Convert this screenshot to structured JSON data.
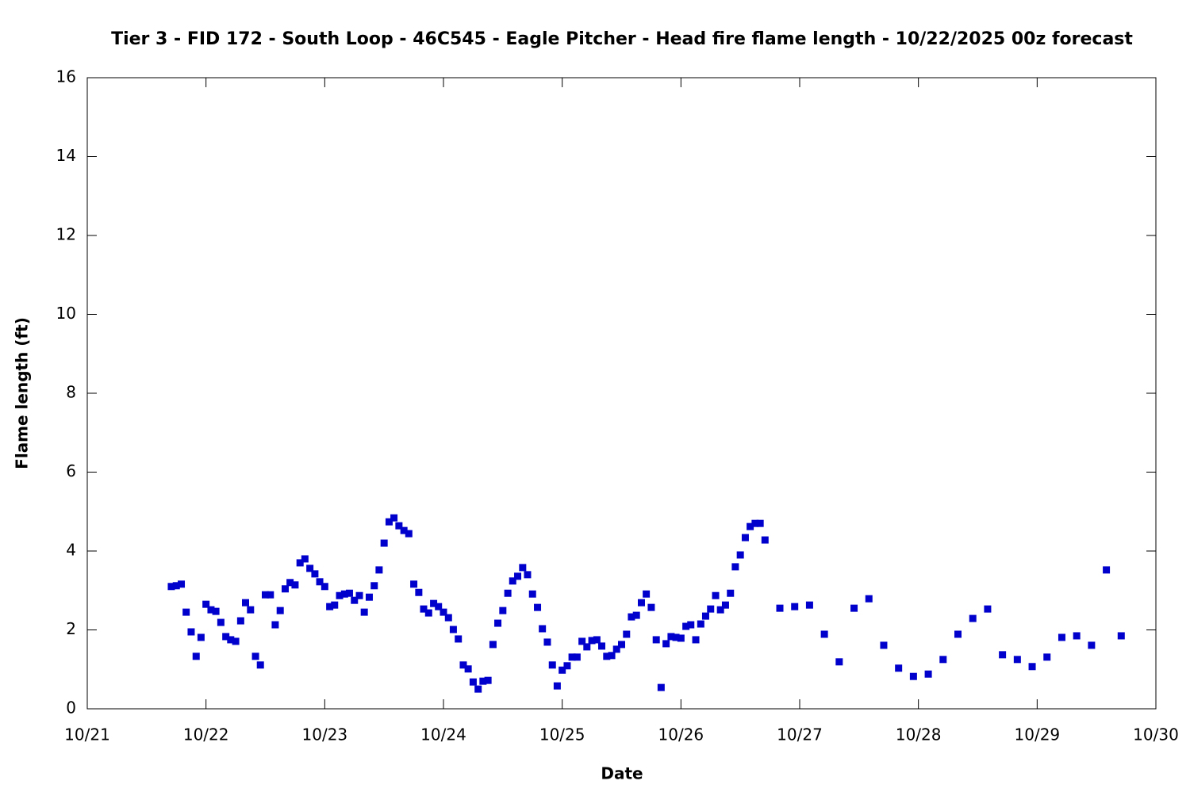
{
  "chart_data": {
    "type": "scatter",
    "title": "Tier 3 - FID 172 - South Loop - 46C545 - Eagle Pitcher - Head fire flame length - 10/22/2025 00z forecast",
    "x_label": "Date",
    "y_label": "Flame length (ft)",
    "color": "#0000cc",
    "grid": false,
    "xlim": [
      21,
      30
    ],
    "xticks": [
      {
        "value": 21,
        "label": "10/21"
      },
      {
        "value": 22,
        "label": "10/22"
      },
      {
        "value": 23,
        "label": "10/23"
      },
      {
        "value": 24,
        "label": "10/24"
      },
      {
        "value": 25,
        "label": "10/25"
      },
      {
        "value": 26,
        "label": "10/26"
      },
      {
        "value": 27,
        "label": "10/27"
      },
      {
        "value": 28,
        "label": "10/28"
      },
      {
        "value": 29,
        "label": "10/29"
      },
      {
        "value": 30,
        "label": "10/30"
      }
    ],
    "ylim": [
      0,
      16
    ],
    "yticks": [
      0,
      2,
      4,
      6,
      8,
      10,
      12,
      14,
      16
    ],
    "x": [
      21.708,
      21.75,
      21.792,
      21.833,
      21.875,
      21.917,
      21.958,
      22,
      22.042,
      22.083,
      22.125,
      22.167,
      22.208,
      22.25,
      22.292,
      22.333,
      22.375,
      22.417,
      22.458,
      22.5,
      22.542,
      22.583,
      22.625,
      22.667,
      22.708,
      22.75,
      22.792,
      22.833,
      22.875,
      22.917,
      22.958,
      23,
      23.042,
      23.083,
      23.125,
      23.167,
      23.208,
      23.25,
      23.292,
      23.333,
      23.375,
      23.417,
      23.458,
      23.5,
      23.542,
      23.583,
      23.625,
      23.667,
      23.708,
      23.75,
      23.792,
      23.833,
      23.875,
      23.917,
      23.958,
      24,
      24.042,
      24.083,
      24.125,
      24.167,
      24.208,
      24.25,
      24.292,
      24.333,
      24.375,
      24.417,
      24.458,
      24.5,
      24.542,
      24.583,
      24.625,
      24.667,
      24.708,
      24.75,
      24.792,
      24.833,
      24.875,
      24.917,
      24.958,
      25,
      25.042,
      25.083,
      25.125,
      25.167,
      25.208,
      25.25,
      25.292,
      25.333,
      25.375,
      25.417,
      25.458,
      25.5,
      25.542,
      25.583,
      25.625,
      25.667,
      25.708,
      25.75,
      25.792,
      25.833,
      25.875,
      25.917,
      25.958,
      26,
      26.042,
      26.083,
      26.125,
      26.167,
      26.208,
      26.25,
      26.292,
      26.333,
      26.375,
      26.417,
      26.458,
      26.5,
      26.542,
      26.583,
      26.625,
      26.667,
      26.708,
      26.833,
      26.958,
      27.083,
      27.208,
      27.333,
      27.458,
      27.583,
      27.708,
      27.833,
      27.958,
      28.083,
      28.208,
      28.333,
      28.458,
      28.583,
      28.708,
      28.833,
      28.958,
      29.083,
      29.208,
      29.333,
      29.458,
      29.583,
      29.708
    ],
    "values": [
      3.1,
      3.12,
      3.16,
      2.45,
      1.95,
      1.33,
      1.81,
      2.65,
      2.51,
      2.47,
      2.19,
      1.83,
      1.75,
      1.71,
      2.23,
      2.69,
      2.51,
      1.33,
      1.11,
      2.89,
      2.89,
      2.13,
      2.49,
      3.04,
      3.2,
      3.14,
      3.7,
      3.8,
      3.56,
      3.42,
      3.22,
      3.1,
      2.59,
      2.63,
      2.87,
      2.91,
      2.93,
      2.75,
      2.87,
      2.45,
      2.83,
      3.12,
      3.52,
      4.2,
      4.74,
      4.84,
      4.64,
      4.52,
      4.44,
      3.16,
      2.95,
      2.53,
      2.43,
      2.67,
      2.59,
      2.45,
      2.31,
      2.01,
      1.77,
      1.11,
      1.01,
      0.68,
      0.5,
      0.7,
      0.72,
      1.63,
      2.17,
      2.49,
      2.93,
      3.24,
      3.36,
      3.58,
      3.4,
      2.91,
      2.57,
      2.03,
      1.69,
      1.11,
      0.58,
      0.98,
      1.09,
      1.31,
      1.31,
      1.71,
      1.57,
      1.73,
      1.75,
      1.59,
      1.33,
      1.35,
      1.51,
      1.63,
      1.89,
      2.33,
      2.37,
      2.69,
      2.91,
      2.57,
      1.75,
      0.54,
      1.65,
      1.83,
      1.81,
      1.79,
      2.09,
      2.13,
      1.75,
      2.15,
      2.35,
      2.53,
      2.87,
      2.51,
      2.63,
      2.93,
      3.6,
      3.9,
      4.34,
      4.62,
      4.7,
      4.7,
      4.28,
      2.55,
      2.59,
      2.63,
      1.89,
      1.19,
      2.55,
      2.79,
      1.61,
      1.03,
      0.82,
      0.88,
      1.25,
      1.89,
      2.29,
      2.53,
      1.37,
      1.25,
      1.07,
      1.31,
      1.81,
      1.85,
      1.61,
      3.52,
      1.85
    ]
  }
}
